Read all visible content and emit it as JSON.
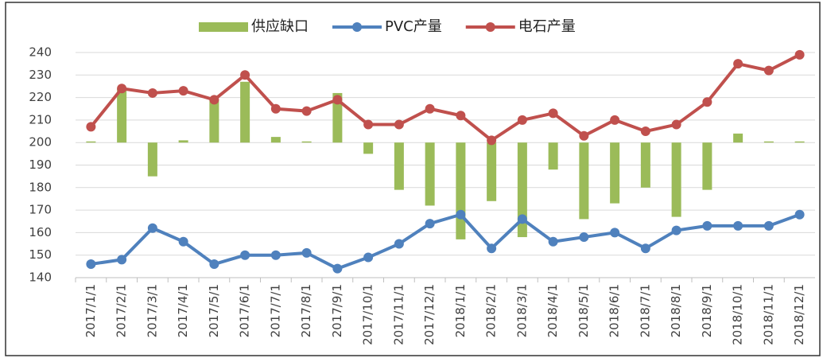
{
  "chart_data": {
    "type": "combo",
    "categories": [
      "2017/1/1",
      "2017/2/1",
      "2017/3/1",
      "2017/4/1",
      "2017/5/1",
      "2017/6/1",
      "2017/7/1",
      "2017/8/1",
      "2017/9/1",
      "2017/10/1",
      "2017/11/1",
      "2017/12/1",
      "2018/1/1",
      "2018/2/1",
      "2018/3/1",
      "2018/4/1",
      "2018/5/1",
      "2018/6/1",
      "2018/7/1",
      "2018/8/1",
      "2018/9/1",
      "2018/10/1",
      "2018/11/1",
      "2018/12/1"
    ],
    "series": [
      {
        "name": "供应缺口",
        "type": "bar",
        "color": "#9bbb59",
        "values": [
          200.5,
          224,
          185,
          201,
          219,
          227,
          202.5,
          200.5,
          222,
          195,
          179,
          172,
          157,
          174,
          158,
          188,
          166,
          173,
          180,
          167,
          179,
          204,
          200.5,
          200.5
        ]
      },
      {
        "name": "PVC产量",
        "type": "line",
        "color": "#4f81bd",
        "values": [
          146,
          148,
          162,
          156,
          146,
          150,
          150,
          151,
          144,
          149,
          155,
          164,
          168,
          153,
          166,
          156,
          158,
          160,
          153,
          161,
          163,
          163,
          163,
          168
        ]
      },
      {
        "name": "电石产量",
        "type": "line",
        "color": "#c0504d",
        "values": [
          207,
          224,
          222,
          223,
          219,
          230,
          215,
          214,
          219,
          208,
          208,
          215,
          212,
          201,
          210,
          213,
          203,
          210,
          205,
          208,
          218,
          235,
          232,
          239
        ]
      }
    ],
    "bar_baseline": 200,
    "ylim": [
      140,
      240
    ],
    "yticks": [
      140,
      150,
      160,
      170,
      180,
      190,
      200,
      210,
      220,
      230,
      240
    ],
    "grid": true,
    "legend": "top"
  }
}
